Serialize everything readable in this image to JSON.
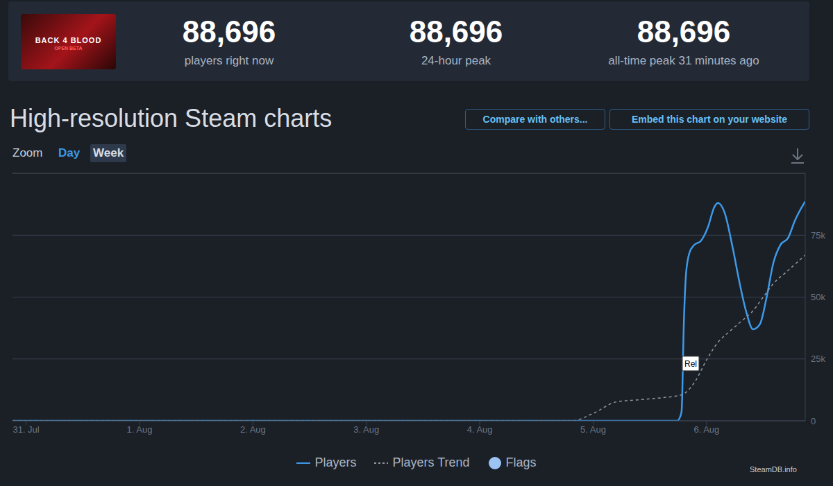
{
  "game": {
    "title": "BACK 4 BLOOD",
    "badge": "OPEN BETA"
  },
  "header": {
    "stats": [
      {
        "value": "88,696",
        "label": "players right now"
      },
      {
        "value": "88,696",
        "label": "24-hour peak"
      },
      {
        "value": "88,696",
        "label": "all-time peak 31 minutes ago"
      }
    ]
  },
  "controls": {
    "buttons": [
      "Compare with others...",
      "Embed this chart on your website"
    ],
    "zoom_label": "Zoom",
    "zoom_options": [
      "Day",
      "Week"
    ],
    "zoom_selected": "Week"
  },
  "watermark": "SteamDB.info",
  "chart_data": {
    "type": "line",
    "title": "High-resolution Steam charts",
    "xlim": [
      -0.12,
      6.87
    ],
    "xticks": [
      {
        "value": 0,
        "label": "31. Jul"
      },
      {
        "value": 1,
        "label": "1. Aug"
      },
      {
        "value": 2,
        "label": "2. Aug"
      },
      {
        "value": 3,
        "label": "3. Aug"
      },
      {
        "value": 4,
        "label": "4. Aug"
      },
      {
        "value": 5,
        "label": "5. Aug"
      },
      {
        "value": 6,
        "label": "6. Aug"
      }
    ],
    "ylim": [
      0,
      100000
    ],
    "yticks": [
      0,
      {
        "value": 25000,
        "label": "25k"
      },
      {
        "value": 50000,
        "label": "50k"
      },
      {
        "value": 75000,
        "label": "75k"
      }
    ],
    "grid": true,
    "legend": "bottom",
    "series": [
      {
        "name": "Players",
        "color": "#3d9ae8",
        "line_style": "solid",
        "x": [
          -0.12,
          5.7,
          5.74,
          5.77,
          5.78,
          5.8,
          5.82,
          5.85,
          5.89,
          5.95,
          6.01,
          6.07,
          6.1,
          6.16,
          6.23,
          6.29,
          6.35,
          6.41,
          6.47,
          6.53,
          6.59,
          6.65,
          6.72,
          6.78,
          6.87
        ],
        "values": [
          0,
          0,
          0,
          2000,
          4000,
          40000,
          60000,
          68000,
          71000,
          72700,
          78000,
          86500,
          88000,
          84000,
          70000,
          56000,
          44000,
          37000,
          39000,
          50000,
          64000,
          71000,
          74000,
          81000,
          88696
        ]
      },
      {
        "name": "Players Trend",
        "color": "#8f98a0",
        "line_style": "dashed",
        "x": [
          -0.12,
          4.81,
          5.0,
          5.2,
          5.4,
          5.6,
          5.78,
          5.9,
          6.0,
          6.1,
          6.2,
          6.3,
          6.4,
          6.5,
          6.6,
          6.7,
          6.87
        ],
        "values": [
          0,
          0,
          3000,
          7600,
          8500,
          9300,
          10500,
          16000,
          24600,
          31700,
          36000,
          40000,
          44000,
          50000,
          56000,
          60000,
          67000
        ]
      }
    ],
    "flags": {
      "name": "Flags",
      "color": "#9bc4f5",
      "items": [
        {
          "text": "Rel",
          "x": 5.86,
          "y": 23000
        }
      ]
    }
  }
}
